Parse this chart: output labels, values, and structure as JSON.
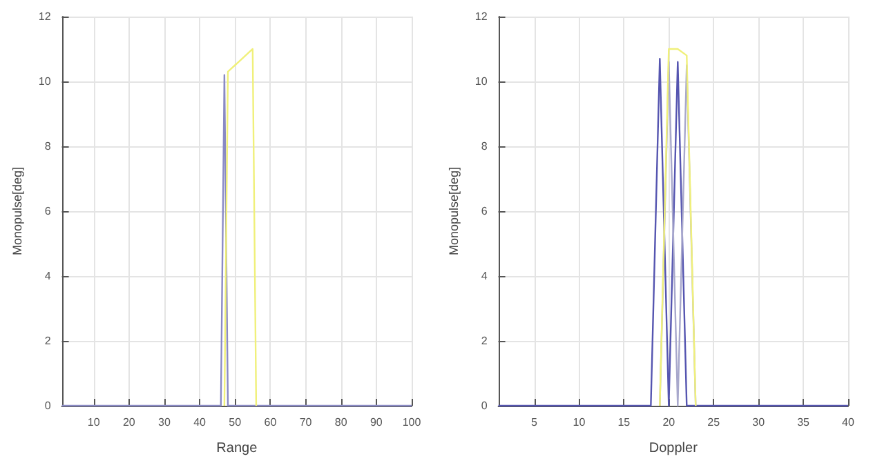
{
  "chart_data": [
    {
      "type": "line",
      "xlabel": "Range",
      "ylabel": "Monopulse[deg]",
      "xlim": [
        1,
        100
      ],
      "xticks": [
        10,
        20,
        30,
        40,
        50,
        60,
        70,
        80,
        90,
        100
      ],
      "ylim": [
        0,
        12
      ],
      "yticks": [
        0,
        2,
        4,
        6,
        8,
        10,
        12
      ],
      "grid": true,
      "marker": "none",
      "line_style": "solid",
      "series": [
        {
          "color": "#8a8ac4",
          "x": [
            1,
            46,
            47,
            48,
            100
          ],
          "values": [
            0,
            0,
            10.2,
            0,
            0
          ]
        },
        {
          "color": "#f0f07a",
          "x": [
            47,
            48,
            49,
            50,
            51,
            52,
            53,
            54,
            55,
            56
          ],
          "values": [
            0,
            10.3,
            10.4,
            10.5,
            10.6,
            10.7,
            10.8,
            10.9,
            11,
            0
          ]
        }
      ]
    },
    {
      "type": "line",
      "xlabel": "Doppler",
      "ylabel": "Monopulse[deg]",
      "xlim": [
        1,
        40
      ],
      "xticks": [
        5,
        10,
        15,
        20,
        25,
        30,
        35,
        40
      ],
      "ylim": [
        0,
        12
      ],
      "yticks": [
        0,
        2,
        4,
        6,
        8,
        10,
        12
      ],
      "grid": true,
      "marker": "none",
      "line_style": "solid",
      "series": [
        {
          "color": "#5555b0",
          "x": [
            1,
            18,
            19,
            20,
            21,
            22,
            40
          ],
          "values": [
            0,
            0,
            10.7,
            0,
            10.6,
            0,
            0
          ]
        },
        {
          "color": "#a8a8cc",
          "x": [
            19,
            20,
            21,
            22,
            23
          ],
          "values": [
            0,
            10.6,
            0,
            10.5,
            0
          ]
        },
        {
          "color": "#f0f07a",
          "x": [
            19,
            20,
            21,
            22,
            23
          ],
          "values": [
            0,
            11,
            11,
            10.8,
            0
          ]
        }
      ]
    }
  ]
}
